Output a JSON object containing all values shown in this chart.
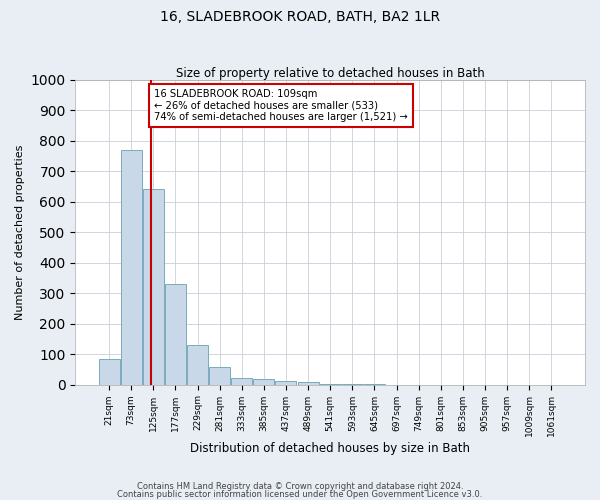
{
  "title": "16, SLADEBROOK ROAD, BATH, BA2 1LR",
  "subtitle": "Size of property relative to detached houses in Bath",
  "xlabel": "Distribution of detached houses by size in Bath",
  "ylabel": "Number of detached properties",
  "bar_color": "#c8d8e8",
  "bar_edgecolor": "#7aaabb",
  "categories": [
    "21sqm",
    "73sqm",
    "125sqm",
    "177sqm",
    "229sqm",
    "281sqm",
    "333sqm",
    "385sqm",
    "437sqm",
    "489sqm",
    "541sqm",
    "593sqm",
    "645sqm",
    "697sqm",
    "749sqm",
    "801sqm",
    "853sqm",
    "905sqm",
    "957sqm",
    "1009sqm",
    "1061sqm"
  ],
  "values": [
    85,
    770,
    640,
    330,
    130,
    57,
    22,
    18,
    13,
    7,
    2,
    2,
    2,
    0,
    0,
    0,
    0,
    0,
    0,
    0,
    0
  ],
  "ylim": [
    0,
    1000
  ],
  "yticks": [
    0,
    100,
    200,
    300,
    400,
    500,
    600,
    700,
    800,
    900,
    1000
  ],
  "vline_x": 1.88,
  "annotation_text": "16 SLADEBROOK ROAD: 109sqm\n← 26% of detached houses are smaller (533)\n74% of semi-detached houses are larger (1,521) →",
  "annotation_box_color": "#ffffff",
  "annotation_box_edgecolor": "#cc0000",
  "vline_color": "#cc0000",
  "footer1": "Contains HM Land Registry data © Crown copyright and database right 2024.",
  "footer2": "Contains public sector information licensed under the Open Government Licence v3.0.",
  "background_color": "#e8eef4",
  "plot_background": "#ffffff",
  "grid_color": "#c8d0d8"
}
